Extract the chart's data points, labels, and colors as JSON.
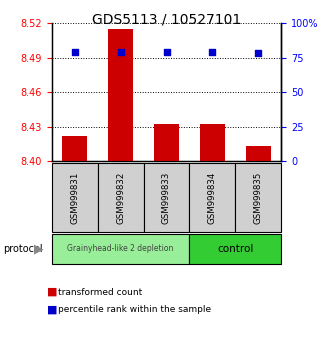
{
  "title": "GDS5113 / 10527101",
  "samples": [
    "GSM999831",
    "GSM999832",
    "GSM999833",
    "GSM999834",
    "GSM999835"
  ],
  "bar_values": [
    8.422,
    8.515,
    8.432,
    8.432,
    8.413
  ],
  "bar_base": 8.4,
  "percentile_values": [
    79,
    79,
    79,
    79,
    78
  ],
  "ylim_left": [
    8.4,
    8.52
  ],
  "ylim_right": [
    0,
    100
  ],
  "yticks_left": [
    8.4,
    8.43,
    8.46,
    8.49,
    8.52
  ],
  "yticks_right": [
    0,
    25,
    50,
    75,
    100
  ],
  "bar_color": "#cc0000",
  "percentile_color": "#0000cc",
  "group1_label": "Grainyhead-like 2 depletion",
  "group2_label": "control",
  "group1_color": "#99ee99",
  "group2_color": "#33cc33",
  "protocol_label": "protocol",
  "legend_bar_label": "transformed count",
  "legend_pct_label": "percentile rank within the sample",
  "bar_width": 0.55
}
